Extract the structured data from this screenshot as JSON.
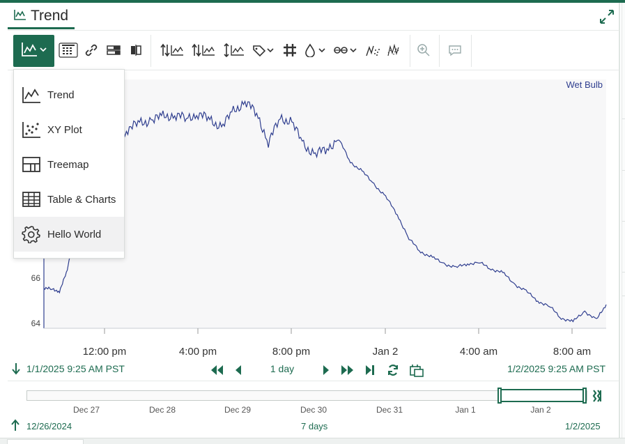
{
  "tab": {
    "title": "Trend",
    "icon": "trend-chart-icon"
  },
  "toolbar": {
    "view_selector_icon": "trend-chart-icon",
    "buttons": [
      "calendar-icon",
      "link-icon",
      "dashboard-panels-icon",
      "compare-icon",
      "sort-lanes-icon",
      "sort-axes-icon",
      "axis-align-icon",
      "label-tag-icon",
      "grid-icon",
      "color-drop-icon",
      "customize-icon",
      "scatter-dots-icon",
      "noise-icon",
      "zoom-icon",
      "comment-icon"
    ]
  },
  "menu": {
    "items": [
      {
        "label": "Trend",
        "icon": "trend-chart-icon"
      },
      {
        "label": "XY Plot",
        "icon": "scatter-plot-icon"
      },
      {
        "label": "Treemap",
        "icon": "treemap-icon"
      },
      {
        "label": "Table & Charts",
        "icon": "table-icon"
      },
      {
        "label": "Hello World",
        "icon": "gear-icon"
      }
    ],
    "highlighted_index": 4
  },
  "time_controls": {
    "start": "1/1/2025 9:25 AM  PST",
    "end": "1/2/2025 9:25 AM  PST",
    "duration": "1 day"
  },
  "overview": {
    "labels": [
      "Dec 27",
      "Dec 28",
      "Dec 29",
      "Dec 30",
      "Dec 31",
      "Jan 1",
      "Jan 2"
    ],
    "start": "12/26/2024",
    "duration": "7 days",
    "end": "1/2/2025"
  },
  "colors": {
    "accent": "#1d6b50",
    "series": "#2f3e8f",
    "plot_bg": "#f7f7f8"
  },
  "chart_data": {
    "type": "line",
    "series": [
      {
        "name": "Wet Bulb",
        "x": [
          "2025-01-01 09:25",
          "2025-01-01 09:45",
          "2025-01-01 10:05",
          "2025-01-01 10:25",
          "2025-01-01 11:00",
          "2025-01-01 11:30",
          "2025-01-01 12:00",
          "2025-01-01 12:30",
          "2025-01-01 13:00",
          "2025-01-01 13:30",
          "2025-01-01 14:00",
          "2025-01-01 14:30",
          "2025-01-01 15:00",
          "2025-01-01 15:30",
          "2025-01-01 16:00",
          "2025-01-01 16:30",
          "2025-01-01 17:00",
          "2025-01-01 17:30",
          "2025-01-01 18:00",
          "2025-01-01 18:30",
          "2025-01-01 19:00",
          "2025-01-01 19:30",
          "2025-01-01 20:00",
          "2025-01-01 20:30",
          "2025-01-01 21:00",
          "2025-01-01 21:30",
          "2025-01-01 22:00",
          "2025-01-01 22:30",
          "2025-01-01 23:00",
          "2025-01-01 23:30",
          "2025-01-02 00:00",
          "2025-01-02 00:30",
          "2025-01-02 01:00",
          "2025-01-02 01:30",
          "2025-01-02 02:00",
          "2025-01-02 02:30",
          "2025-01-02 03:00",
          "2025-01-02 03:30",
          "2025-01-02 04:00",
          "2025-01-02 04:30",
          "2025-01-02 05:00",
          "2025-01-02 05:30",
          "2025-01-02 06:00",
          "2025-01-02 06:30",
          "2025-01-02 07:00",
          "2025-01-02 07:30",
          "2025-01-02 08:00",
          "2025-01-02 08:30",
          "2025-01-02 09:00",
          "2025-01-02 09:25"
        ],
        "values": [
          66.2,
          66.1,
          66.0,
          67.2,
          71.5,
          73.1,
          74.3,
          75.0,
          75.6,
          75.9,
          76.1,
          76.3,
          76.4,
          76.2,
          76.5,
          76.1,
          75.7,
          76.6,
          77.2,
          76.5,
          74.8,
          76.2,
          76.0,
          74.6,
          74.1,
          74.4,
          75.0,
          73.6,
          73.1,
          72.3,
          71.6,
          70.5,
          69.1,
          68.3,
          68.0,
          67.6,
          67.4,
          67.6,
          67.7,
          67.3,
          67.1,
          66.4,
          66.0,
          65.4,
          65.1,
          64.4,
          64.2,
          64.8,
          64.3,
          65.2
        ]
      }
    ],
    "x_ticks": [
      "12:00 pm",
      "4:00 pm",
      "8:00 pm",
      "Jan 2",
      "4:00 am",
      "8:00 am"
    ],
    "y_ticks": [
      "64",
      "66"
    ],
    "ylim": [
      63.8,
      78.5
    ],
    "grid": false,
    "legend": "top-right"
  }
}
